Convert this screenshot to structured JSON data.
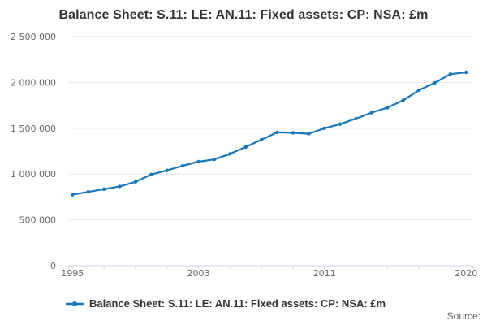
{
  "chart": {
    "source_label": "Source:",
    "colors": {
      "line": "#1777bd",
      "grid": "#e6e6e6",
      "axis": "#ccd6eb",
      "label": "#666666",
      "title": "#333333"
    }
  },
  "chart_data": {
    "type": "line",
    "title": "Balance Sheet: S.11: LE: AN.11: Fixed assets: CP: NSA: £m",
    "xlabel": "",
    "ylabel": "",
    "x": [
      1995,
      1996,
      1997,
      1998,
      1999,
      2000,
      2001,
      2002,
      2003,
      2004,
      2005,
      2006,
      2007,
      2008,
      2009,
      2010,
      2011,
      2012,
      2013,
      2014,
      2015,
      2016,
      2017,
      2018,
      2019,
      2020
    ],
    "series": [
      {
        "name": "Balance Sheet: S.11: LE: AN.11: Fixed assets: CP: NSA: £m",
        "values": [
          775000,
          805000,
          835000,
          865000,
          915000,
          995000,
          1040000,
          1090000,
          1135000,
          1160000,
          1220000,
          1295000,
          1375000,
          1455000,
          1450000,
          1440000,
          1500000,
          1545000,
          1605000,
          1670000,
          1725000,
          1805000,
          1915000,
          1995000,
          2090000,
          2110000
        ]
      }
    ],
    "ylim": [
      0,
      2500000
    ],
    "ytick_interval": 500000,
    "ytick_labels": [
      "0",
      "500 000",
      "1 000 000",
      "1 500 000",
      "2 000 000",
      "2 500 000"
    ],
    "xticks_labeled": [
      1995,
      2003,
      2011,
      2020
    ],
    "xtick_minor_interval": 2,
    "grid": true,
    "legend_position": "bottom"
  }
}
